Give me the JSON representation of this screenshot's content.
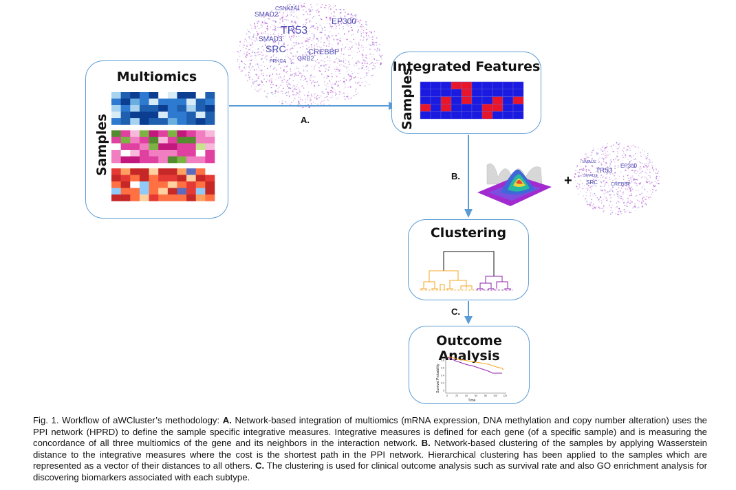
{
  "boxes": {
    "multiomics": "Multiomics",
    "integrated": "Integrated Features",
    "clustering": "Clustering",
    "outcome": "Outcome Analysis"
  },
  "samples_label": "Samples",
  "steps": {
    "a": "A.",
    "b": "B.",
    "c": "C."
  },
  "plus": "+",
  "network_genes_large": [
    "SMAD2",
    "CSNK2A1",
    "TR53",
    "EP300",
    "SMAD3",
    "SRC",
    "CREBBP",
    "GRB2",
    "PRKCA"
  ],
  "network_genes_small": [
    "SMAD2",
    "TR53",
    "EP300",
    "SMAD3",
    "SRC",
    "CREBBP"
  ],
  "survival": {
    "ylabel": "Survival Probability",
    "xlabel": "Time",
    "yticks": [
      "0.8",
      "0.6",
      "0.4",
      "0.2",
      "0"
    ],
    "xticks": [
      "0",
      "20",
      "40",
      "60",
      "80",
      "100",
      "120"
    ]
  },
  "caption": {
    "fig": "Fig. 1. Workflow of aWCluster’s methodology: ",
    "a_label": "A.",
    "a_text": " Network-based integration of multiomics (mRNA expression, DNA methylation and copy number alteration) uses the PPI network (HPRD) to define the sample specific integrative measures. Integrative measures is defined for each gene (of a specific sample) and is measuring the concordance of all three multiomics of the gene and its neighbors in the interaction network. ",
    "b_label": "B.",
    "b_text": " Network-based clustering of the samples by applying Wasserstein distance to the integrative measures where the cost is the shortest path in the PPI network. Hierarchical clustering has been applied to the samples which are represented as a vector of their distances to all others. ",
    "c_label": "C.",
    "c_text": " The clustering is used for clinical outcome analysis such as survival rate and also GO enrichment analysis for discovering biomarkers associated with each subtype."
  },
  "colors": {
    "box_border": "#5b9bd5",
    "arrow": "#5b9bd5",
    "cluster_orange": "#f5a623",
    "cluster_purple": "#8e24aa",
    "network": "#b34fd1"
  }
}
